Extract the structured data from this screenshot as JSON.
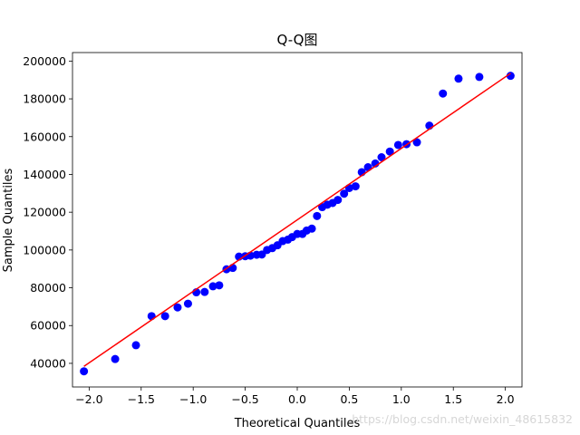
{
  "chart_data": {
    "type": "scatter",
    "title": "Q-Q图",
    "xlabel": "Theoretical Quantiles",
    "ylabel": "Sample Quantiles",
    "xlim": [
      -2.16,
      2.16
    ],
    "ylim": [
      27500,
      204500
    ],
    "xticks": [
      -2.0,
      -1.5,
      -1.0,
      -0.5,
      0.0,
      0.5,
      1.0,
      1.5,
      2.0
    ],
    "xtick_labels": [
      "−2.0",
      "−1.5",
      "−1.0",
      "−0.5",
      "0.0",
      "0.5",
      "1.0",
      "1.5",
      "2.0"
    ],
    "yticks": [
      40000,
      60000,
      80000,
      100000,
      120000,
      140000,
      160000,
      180000,
      200000
    ],
    "ytick_labels": [
      "40000",
      "60000",
      "80000",
      "100000",
      "120000",
      "140000",
      "160000",
      "180000",
      "200000"
    ],
    "grid": false,
    "points": {
      "color": "#0000ff",
      "x": [
        -2.05,
        -1.75,
        -1.55,
        -1.4,
        -1.27,
        -1.15,
        -1.05,
        -0.97,
        -0.89,
        -0.81,
        -0.75,
        -0.68,
        -0.62,
        -0.56,
        -0.5,
        -0.45,
        -0.39,
        -0.34,
        -0.29,
        -0.24,
        -0.19,
        -0.14,
        -0.09,
        -0.05,
        0.0,
        0.05,
        0.09,
        0.14,
        0.19,
        0.24,
        0.29,
        0.34,
        0.39,
        0.45,
        0.5,
        0.56,
        0.62,
        0.68,
        0.75,
        0.81,
        0.89,
        0.97,
        1.05,
        1.15,
        1.27,
        1.4,
        1.55,
        1.75,
        2.05
      ],
      "y": [
        35800,
        42300,
        49600,
        65000,
        65000,
        69600,
        71600,
        77600,
        77800,
        80800,
        81300,
        89800,
        90500,
        96500,
        96700,
        97000,
        97500,
        97600,
        100000,
        101000,
        102500,
        104700,
        105500,
        106800,
        108500,
        108500,
        110300,
        111300,
        118000,
        122700,
        124000,
        124900,
        126500,
        129800,
        132800,
        133700,
        141200,
        143800,
        145800,
        149100,
        152100,
        155600,
        156000,
        157000,
        165800,
        182800,
        190700,
        191600,
        192200
      ]
    },
    "fit_line": {
      "color": "#ff0000",
      "x": [
        -2.05,
        2.05
      ],
      "y": [
        38400,
        193500
      ]
    }
  },
  "watermark_text": "https://blog.csdn.net/weixin_48615832"
}
